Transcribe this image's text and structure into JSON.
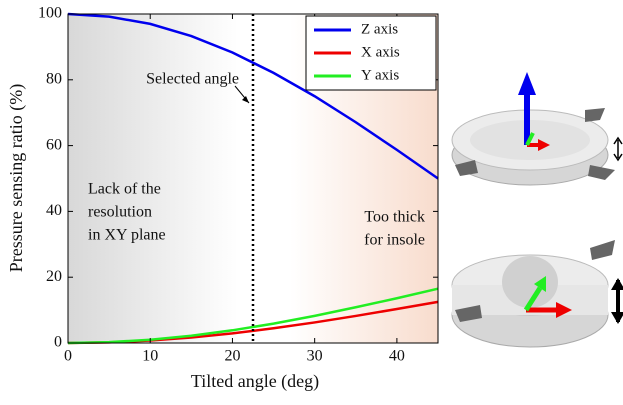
{
  "chart_data": {
    "type": "line",
    "x": [
      0,
      5,
      10,
      15,
      20,
      25,
      30,
      35,
      40,
      45
    ],
    "series": [
      {
        "name": "Z axis",
        "color": "#0000ee",
        "values": [
          100,
          99.2,
          97.0,
          93.3,
          88.3,
          82.1,
          75,
          67.1,
          58.7,
          50
        ]
      },
      {
        "name": "X axis",
        "color": "#ee0000",
        "values": [
          0,
          0.19,
          0.75,
          1.67,
          2.92,
          4.47,
          6.25,
          8.23,
          10.33,
          12.5
        ]
      },
      {
        "name": "Y axis",
        "color": "#22ee22",
        "values": [
          0,
          0.25,
          1.0,
          2.21,
          3.86,
          5.89,
          8.25,
          10.86,
          13.6,
          16.5
        ]
      }
    ],
    "xlim": [
      0,
      45
    ],
    "xticks": [
      0,
      10,
      20,
      30,
      40
    ],
    "ylim": [
      0,
      100
    ],
    "yticks": [
      0,
      20,
      40,
      60,
      80,
      100
    ],
    "xlabel": "Tilted angle (deg)",
    "ylabel": "Pressure sensing ratio (%)",
    "legend": "upper right",
    "selected_x": 22.5,
    "annotations": {
      "selected": "Selected angle",
      "left": [
        "Lack of the",
        "resolution",
        "in XY plane"
      ],
      "right": [
        "Too thick",
        "for insole"
      ]
    }
  }
}
